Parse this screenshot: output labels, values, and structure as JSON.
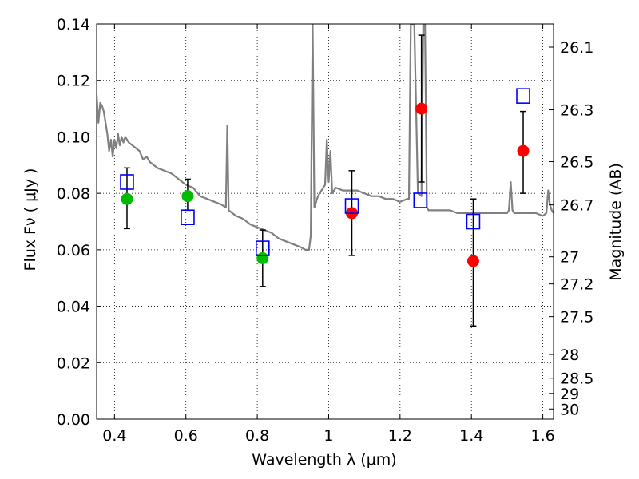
{
  "chart_data": {
    "type": "scatter",
    "title": "",
    "xlabel": "Wavelength  λ (μm)",
    "ylabel": "Flux  Fν  ( μJy )",
    "y2label": "Magnitude (AB)",
    "xlim": [
      0.35,
      1.63
    ],
    "ylim": [
      0.0,
      0.14
    ],
    "grid": true,
    "x_ticks": [
      0.4,
      0.6,
      0.8,
      1.0,
      1.2,
      1.4,
      1.6
    ],
    "x_tick_labels": [
      "0.4",
      "0.6",
      "0.8",
      "1",
      "1.2",
      "1.4",
      "1.6"
    ],
    "y_ticks": [
      0.0,
      0.02,
      0.04,
      0.06,
      0.08,
      0.1,
      0.12,
      0.14
    ],
    "y_tick_labels": [
      "0.00",
      "0.02",
      "0.04",
      "0.06",
      "0.08",
      "0.10",
      "0.12",
      "0.14"
    ],
    "y2_ticks": [
      {
        "label": "26.1",
        "flux": 0.1318
      },
      {
        "label": "26.3",
        "flux": 0.1096
      },
      {
        "label": "26.5",
        "flux": 0.0912
      },
      {
        "label": "26.7",
        "flux": 0.0759
      },
      {
        "label": "27",
        "flux": 0.0575
      },
      {
        "label": "27.2",
        "flux": 0.0479
      },
      {
        "label": "27.5",
        "flux": 0.0363
      },
      {
        "label": "28",
        "flux": 0.0229
      },
      {
        "label": "28.5",
        "flux": 0.0145
      },
      {
        "label": "29",
        "flux": 0.0091
      },
      {
        "label": "30",
        "flux": 0.0036
      }
    ],
    "series": [
      {
        "kind": "line",
        "color": "#808080",
        "x": [
          0.35,
          0.355,
          0.36,
          0.365,
          0.37,
          0.375,
          0.38,
          0.385,
          0.39,
          0.395,
          0.4,
          0.405,
          0.41,
          0.415,
          0.42,
          0.425,
          0.43,
          0.44,
          0.45,
          0.46,
          0.47,
          0.48,
          0.49,
          0.5,
          0.52,
          0.54,
          0.56,
          0.58,
          0.6,
          0.62,
          0.64,
          0.66,
          0.68,
          0.7,
          0.712,
          0.716,
          0.72,
          0.74,
          0.76,
          0.78,
          0.8,
          0.82,
          0.84,
          0.86,
          0.88,
          0.9,
          0.92,
          0.935,
          0.945,
          0.95,
          0.955,
          0.96,
          0.97,
          0.98,
          0.99,
          0.995,
          1.0,
          1.005,
          1.01,
          1.02,
          1.04,
          1.06,
          1.08,
          1.1,
          1.12,
          1.14,
          1.16,
          1.18,
          1.2,
          1.22,
          1.225,
          1.23,
          1.24,
          1.25,
          1.26,
          1.265,
          1.27,
          1.275,
          1.28,
          1.285,
          1.29,
          1.3,
          1.32,
          1.34,
          1.36,
          1.38,
          1.4,
          1.42,
          1.44,
          1.46,
          1.48,
          1.5,
          1.505,
          1.51,
          1.515,
          1.52,
          1.54,
          1.56,
          1.58,
          1.6,
          1.61,
          1.615,
          1.62,
          1.625,
          1.63
        ],
        "y": [
          0.115,
          0.105,
          0.112,
          0.111,
          0.109,
          0.105,
          0.101,
          0.095,
          0.099,
          0.093,
          0.099,
          0.096,
          0.101,
          0.097,
          0.1,
          0.098,
          0.1,
          0.098,
          0.097,
          0.096,
          0.095,
          0.092,
          0.093,
          0.091,
          0.089,
          0.088,
          0.087,
          0.085,
          0.083,
          0.082,
          0.079,
          0.078,
          0.077,
          0.076,
          0.075,
          0.104,
          0.074,
          0.072,
          0.071,
          0.069,
          0.068,
          0.067,
          0.066,
          0.064,
          0.063,
          0.062,
          0.061,
          0.06,
          0.06,
          0.065,
          0.14,
          0.075,
          0.079,
          0.081,
          0.083,
          0.099,
          0.084,
          0.095,
          0.08,
          0.082,
          0.081,
          0.081,
          0.081,
          0.08,
          0.079,
          0.079,
          0.078,
          0.078,
          0.077,
          0.078,
          0.078,
          0.14,
          0.14,
          0.08,
          0.079,
          0.14,
          0.14,
          0.075,
          0.074,
          0.074,
          0.074,
          0.074,
          0.074,
          0.074,
          0.073,
          0.073,
          0.073,
          0.073,
          0.073,
          0.073,
          0.073,
          0.073,
          0.074,
          0.084,
          0.074,
          0.073,
          0.073,
          0.073,
          0.073,
          0.072,
          0.073,
          0.081,
          0.076,
          0.074,
          0.073
        ]
      },
      {
        "kind": "points",
        "color": "#00bb00",
        "x": [
          0.435,
          0.605,
          0.815
        ],
        "y": [
          0.078,
          0.079,
          0.057
        ],
        "err_low": [
          0.0675,
          0.074,
          0.047
        ],
        "err_high": [
          0.089,
          0.085,
          0.067
        ]
      },
      {
        "kind": "points",
        "color": "#ff0000",
        "x": [
          1.065,
          1.26,
          1.405,
          1.545
        ],
        "y": [
          0.073,
          0.11,
          0.056,
          0.095
        ],
        "err_low": [
          0.058,
          0.084,
          0.033,
          0.08
        ],
        "err_high": [
          0.088,
          0.136,
          0.078,
          0.109
        ]
      },
      {
        "kind": "squares",
        "color": "#0000ff",
        "x": [
          0.435,
          0.605,
          0.815,
          1.065,
          1.257,
          1.405,
          1.545
        ],
        "y": [
          0.084,
          0.0715,
          0.0605,
          0.0755,
          0.0775,
          0.07,
          0.1145
        ]
      }
    ]
  }
}
